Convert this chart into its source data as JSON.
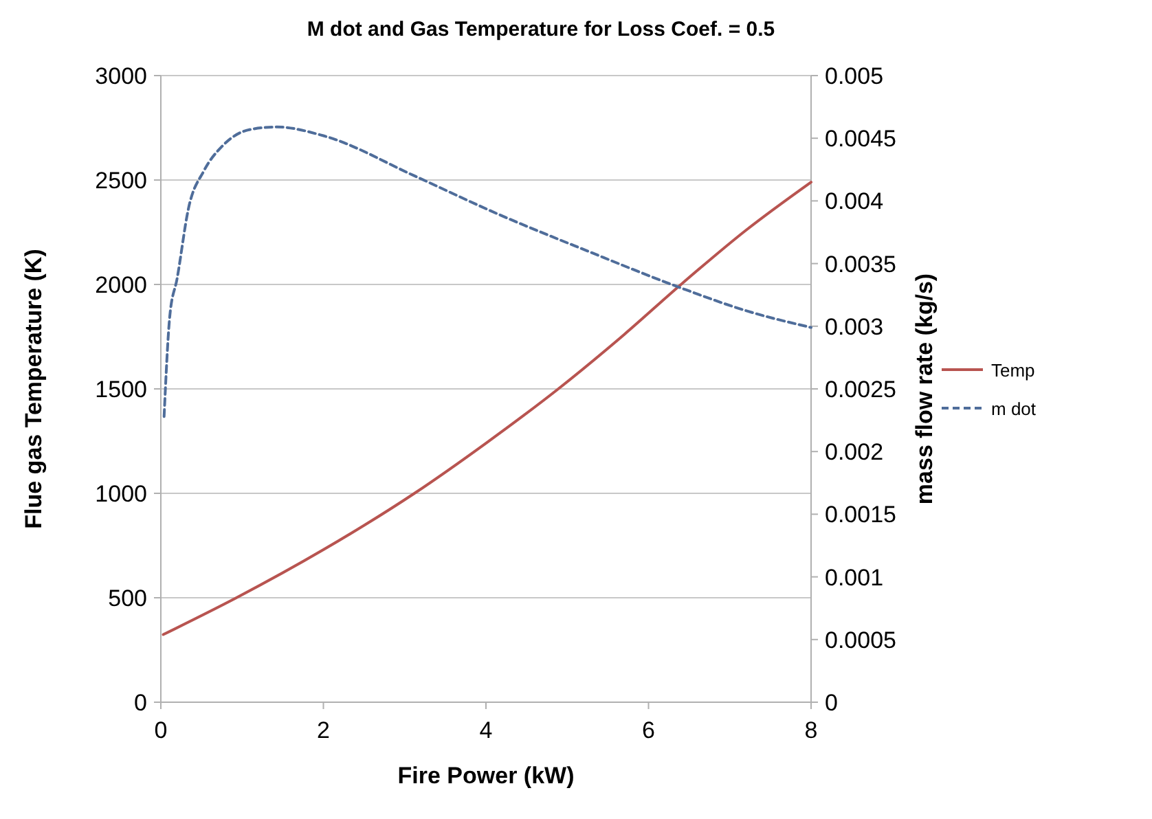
{
  "chart_data": {
    "type": "line",
    "title": "M dot and Gas Temperature for Loss Coef. = 0.5",
    "xlabel": "Fire Power (kW)",
    "ylabel": "Flue gas Temperature (K)",
    "y2label": "mass flow rate (kg/s)",
    "xlim": [
      0,
      8
    ],
    "xticks": [
      0,
      2,
      4,
      6,
      8
    ],
    "ylim": [
      0,
      3000
    ],
    "yticks": [
      0,
      500,
      1000,
      1500,
      2000,
      2500,
      3000
    ],
    "y2lim": [
      0,
      0.005
    ],
    "y2ticks": [
      0,
      0.0005,
      0.001,
      0.0015,
      0.002,
      0.0025,
      0.003,
      0.0035,
      0.004,
      0.0045,
      0.005
    ],
    "grid": "y",
    "legend": "right",
    "series": [
      {
        "name": "Temp",
        "color": "#b85450",
        "line_style": "solid",
        "x": [
          0.03,
          0.93,
          2,
          3.12,
          4,
          4.89,
          5.7,
          6.4,
          7.2,
          8
        ],
        "values": [
          324,
          500,
          730,
          1000,
          1240,
          1500,
          1760,
          2000,
          2260,
          2490
        ]
      },
      {
        "name": "m dot",
        "color": "#4f6d9a",
        "line_style": "dashed",
        "axis": "y2",
        "x": [
          0.04,
          0.11,
          0.2,
          0.34,
          0.53,
          0.76,
          1.1,
          1.43,
          2,
          3.12,
          4.13,
          5.25,
          6.38,
          7.22,
          8
        ],
        "values": [
          0.00228,
          0.00308,
          0.00338,
          0.00394,
          0.00424,
          0.00444,
          0.00457,
          0.00459,
          0.00452,
          0.0042,
          0.0039,
          0.0036,
          0.00331,
          0.00312,
          0.00299
        ]
      }
    ]
  }
}
